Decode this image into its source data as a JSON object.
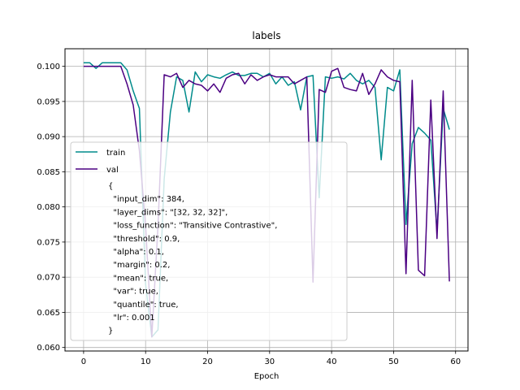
{
  "chart_data": {
    "type": "line",
    "title": "labels",
    "xlabel": "Epoch",
    "ylabel": "",
    "xlim": [
      -3,
      62
    ],
    "ylim": [
      0.0595,
      0.1025
    ],
    "xticks": [
      0,
      10,
      20,
      30,
      40,
      50,
      60
    ],
    "yticks": [
      0.06,
      0.065,
      0.07,
      0.075,
      0.08,
      0.085,
      0.09,
      0.095,
      0.1
    ],
    "ytick_labels": [
      "0.060",
      "0.065",
      "0.070",
      "0.075",
      "0.080",
      "0.085",
      "0.090",
      "0.095",
      "0.100"
    ],
    "grid": true,
    "legend_position": "lower-left",
    "x": [
      0,
      1,
      2,
      3,
      4,
      5,
      6,
      7,
      8,
      9,
      10,
      11,
      12,
      13,
      14,
      15,
      16,
      17,
      18,
      19,
      20,
      21,
      22,
      23,
      24,
      25,
      26,
      27,
      28,
      29,
      30,
      31,
      32,
      33,
      34,
      35,
      36,
      37,
      38,
      39,
      40,
      41,
      42,
      43,
      44,
      45,
      46,
      47,
      48,
      49,
      50,
      51,
      52,
      53,
      54,
      55,
      56,
      57,
      58,
      59
    ],
    "series": [
      {
        "name": "train",
        "color": "#008B8B",
        "values": [
          0.1005,
          0.1005,
          0.0997,
          0.1005,
          0.1005,
          0.1005,
          0.1005,
          0.0995,
          0.0965,
          0.094,
          0.069,
          0.0615,
          0.0625,
          0.084,
          0.0935,
          0.0985,
          0.098,
          0.0935,
          0.0992,
          0.0978,
          0.0988,
          0.0985,
          0.0983,
          0.0988,
          0.0992,
          0.0987,
          0.0987,
          0.099,
          0.099,
          0.0985,
          0.099,
          0.0975,
          0.0985,
          0.0973,
          0.0978,
          0.0938,
          0.0985,
          0.0987,
          0.0813,
          0.0985,
          0.0983,
          0.0985,
          0.0982,
          0.099,
          0.098,
          0.0975,
          0.098,
          0.097,
          0.0867,
          0.097,
          0.0965,
          0.0995,
          0.0775,
          0.089,
          0.0913,
          0.0905,
          0.0895,
          0.0765,
          0.094,
          0.091
        ]
      },
      {
        "name": "val",
        "color": "#4B0082",
        "values": [
          0.1,
          0.1,
          0.1,
          0.1,
          0.1,
          0.1,
          0.1,
          0.0975,
          0.0945,
          0.088,
          0.0773,
          0.0615,
          0.0773,
          0.0988,
          0.0985,
          0.099,
          0.097,
          0.098,
          0.0975,
          0.0973,
          0.0965,
          0.0975,
          0.0963,
          0.0983,
          0.0988,
          0.099,
          0.0975,
          0.0988,
          0.098,
          0.0985,
          0.0988,
          0.0985,
          0.0985,
          0.0985,
          0.0975,
          0.098,
          0.0985,
          0.0693,
          0.0967,
          0.0963,
          0.0993,
          0.0997,
          0.097,
          0.0967,
          0.0965,
          0.099,
          0.096,
          0.0975,
          0.0995,
          0.0985,
          0.098,
          0.0978,
          0.0705,
          0.098,
          0.071,
          0.0702,
          0.0952,
          0.0755,
          0.0965,
          0.0694
        ]
      }
    ],
    "legend_config_lines": [
      "{",
      "  \"input_dim\": 384,",
      "  \"layer_dims\": \"[32, 32, 32]\",",
      "  \"loss_function\": \"Transitive Contrastive\",",
      "  \"threshold\": 0.9,",
      "  \"alpha\": 0.1,",
      "  \"margin\": 0.2,",
      "  \"mean\": true,",
      "  \"var\": true,",
      "  \"quantile\": true,",
      "  \"lr\": 0.001",
      "}"
    ]
  }
}
